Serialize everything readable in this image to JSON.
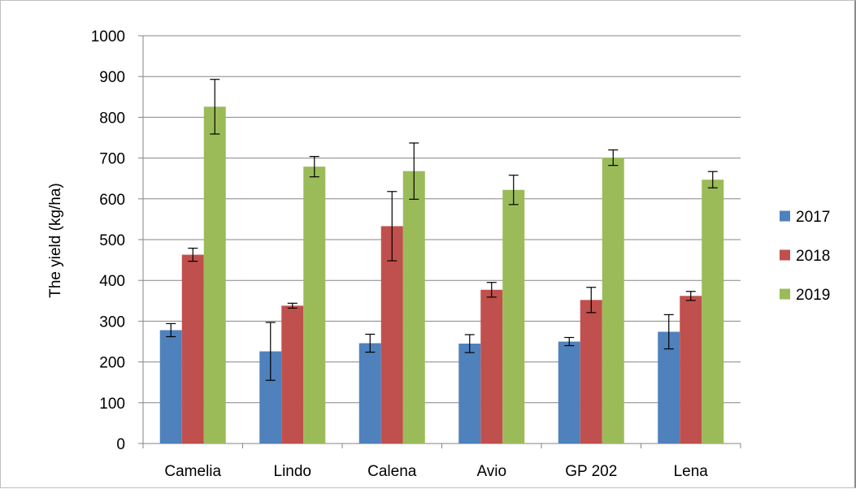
{
  "chart_data": {
    "type": "bar",
    "title": "",
    "xlabel": "",
    "ylabel": "The yield (kg/ha)",
    "ylim": [
      0,
      1000
    ],
    "yticks": [
      0,
      100,
      200,
      300,
      400,
      500,
      600,
      700,
      800,
      900,
      1000
    ],
    "grid": true,
    "legend_position": "right",
    "categories": [
      "Camelia",
      "Lindo",
      "Calena",
      "Avio",
      "GP 202",
      "Lena"
    ],
    "series": [
      {
        "name": "2017",
        "color": "#4f81bd",
        "values": [
          278,
          226,
          246,
          245,
          250,
          274
        ],
        "errors": [
          16,
          71,
          22,
          22,
          10,
          42
        ]
      },
      {
        "name": "2018",
        "color": "#c0504d",
        "values": [
          463,
          338,
          533,
          377,
          352,
          362
        ],
        "errors": [
          16,
          6,
          85,
          18,
          31,
          11
        ]
      },
      {
        "name": "2019",
        "color": "#9bbb59",
        "values": [
          826,
          679,
          668,
          622,
          701,
          647
        ],
        "errors": [
          67,
          25,
          69,
          36,
          19,
          20
        ]
      }
    ]
  }
}
